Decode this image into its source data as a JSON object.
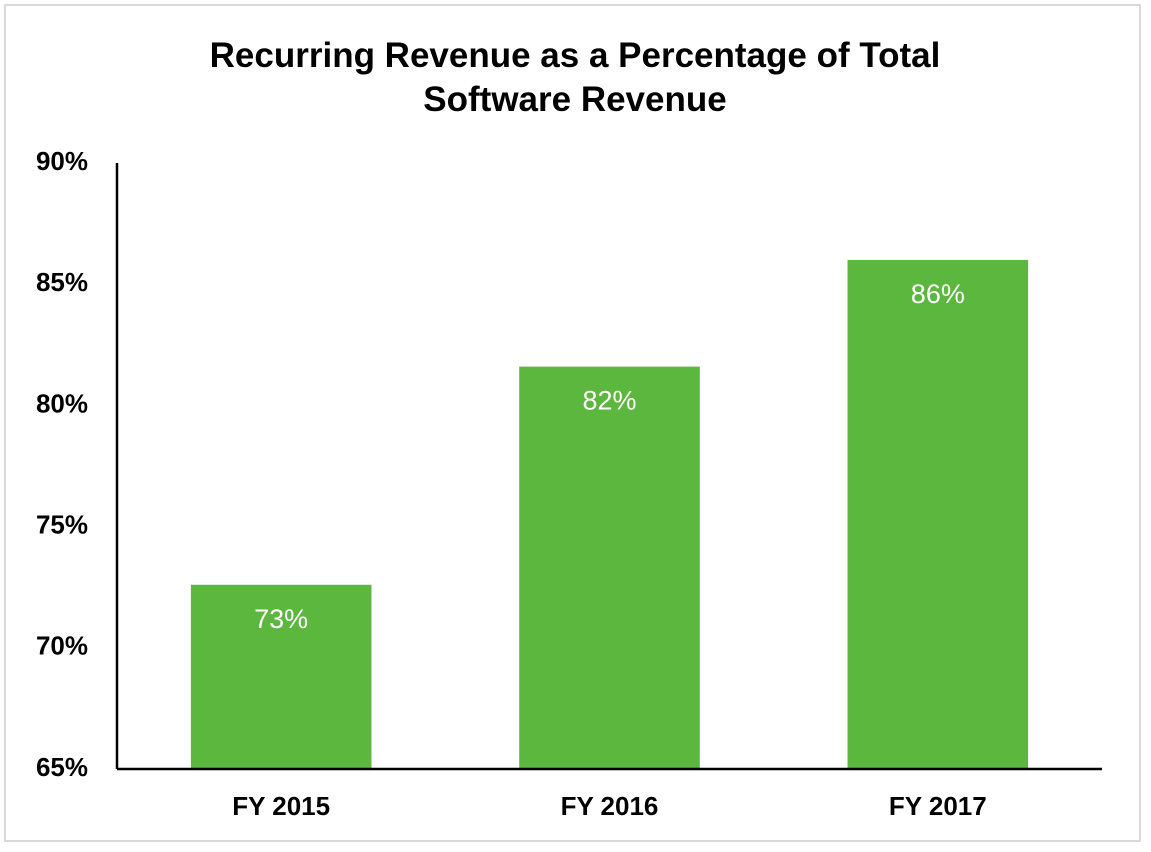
{
  "chart_data": {
    "type": "bar",
    "title": "Recurring Revenue as a Percentage of Total Software Revenue",
    "categories": [
      "FY 2015",
      "FY 2016",
      "FY 2017"
    ],
    "values": [
      72.6,
      81.6,
      86.0
    ],
    "value_labels": [
      "73%",
      "82%",
      "86%"
    ],
    "color": "#5cb73f",
    "ylim": [
      65,
      90
    ],
    "yticks": [
      {
        "value": 65,
        "label": "65%"
      },
      {
        "value": 70,
        "label": "70%"
      },
      {
        "value": 75,
        "label": "75%"
      },
      {
        "value": 80,
        "label": "80%"
      },
      {
        "value": 85,
        "label": "85%"
      },
      {
        "value": 90,
        "label": "90%"
      }
    ],
    "grid": false
  }
}
